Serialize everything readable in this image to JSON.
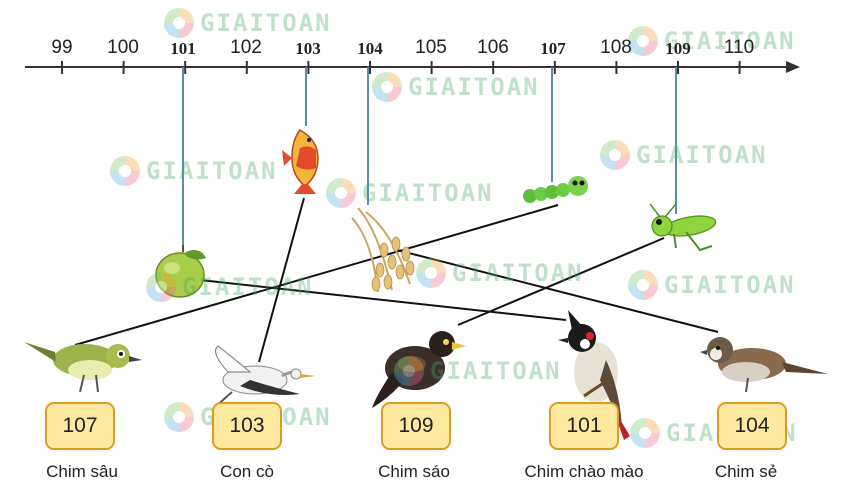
{
  "number_line": {
    "ticks": [
      {
        "label": "99",
        "bold": false
      },
      {
        "label": "100",
        "bold": false
      },
      {
        "label": "101",
        "bold": true
      },
      {
        "label": "102",
        "bold": false
      },
      {
        "label": "103",
        "bold": true
      },
      {
        "label": "104",
        "bold": true
      },
      {
        "label": "105",
        "bold": false
      },
      {
        "label": "106",
        "bold": false
      },
      {
        "label": "107",
        "bold": true
      },
      {
        "label": "108",
        "bold": false
      },
      {
        "label": "109",
        "bold": true
      },
      {
        "label": "110",
        "bold": false
      }
    ]
  },
  "foods": [
    {
      "name": "guava",
      "value": 101
    },
    {
      "name": "fish",
      "value": 103
    },
    {
      "name": "rice-grains",
      "value": 104
    },
    {
      "name": "caterpillar",
      "value": 107
    },
    {
      "name": "grasshopper",
      "value": 109
    }
  ],
  "birds": [
    {
      "number": "107",
      "name": "Chim sâu"
    },
    {
      "number": "103",
      "name": "Con cò"
    },
    {
      "number": "109",
      "name": "Chim sáo"
    },
    {
      "number": "101",
      "name": "Chim chào mào"
    },
    {
      "number": "104",
      "name": "Chim sẻ"
    }
  ],
  "watermark": "GIAITOAN"
}
